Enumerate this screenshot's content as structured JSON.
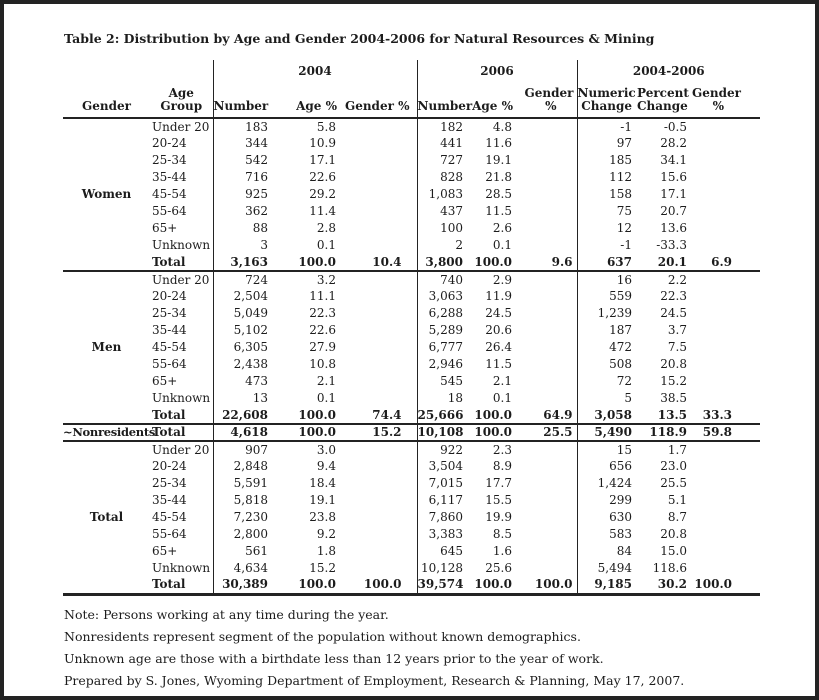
{
  "title": "Table 2: Distribution by Age and Gender 2004-2006 for Natural Resources & Mining",
  "colors": {
    "text": "#1c1c1c",
    "line": "#232323",
    "background": "#ffffff"
  },
  "header": {
    "gender": "Gender",
    "age_group_line1": "Age",
    "age_group_line2": "Group",
    "groups": [
      {
        "year": "2004",
        "cols": [
          [
            "Number"
          ],
          [
            "Age %"
          ],
          [
            "Gender %"
          ]
        ]
      },
      {
        "year": "2006",
        "cols": [
          [
            "Number"
          ],
          [
            "Age %"
          ],
          [
            "Gender",
            "%"
          ]
        ]
      },
      {
        "year": "2004-2006",
        "cols": [
          [
            "Numeric",
            "Change"
          ],
          [
            "Percent",
            "Change"
          ],
          [
            "Gender",
            "%"
          ]
        ]
      }
    ]
  },
  "sections": [
    {
      "gender": "Women",
      "rows": [
        {
          "age": "Under 20",
          "total": false,
          "values": [
            "183",
            "5.8",
            "",
            "182",
            "4.8",
            "",
            "-1",
            "-0.5",
            ""
          ]
        },
        {
          "age": "20-24",
          "total": false,
          "values": [
            "344",
            "10.9",
            "",
            "441",
            "11.6",
            "",
            "97",
            "28.2",
            ""
          ]
        },
        {
          "age": "25-34",
          "total": false,
          "values": [
            "542",
            "17.1",
            "",
            "727",
            "19.1",
            "",
            "185",
            "34.1",
            ""
          ]
        },
        {
          "age": "35-44",
          "total": false,
          "values": [
            "716",
            "22.6",
            "",
            "828",
            "21.8",
            "",
            "112",
            "15.6",
            ""
          ]
        },
        {
          "age": "45-54",
          "total": false,
          "values": [
            "925",
            "29.2",
            "",
            "1,083",
            "28.5",
            "",
            "158",
            "17.1",
            ""
          ]
        },
        {
          "age": "55-64",
          "total": false,
          "values": [
            "362",
            "11.4",
            "",
            "437",
            "11.5",
            "",
            "75",
            "20.7",
            ""
          ]
        },
        {
          "age": "65+",
          "total": false,
          "values": [
            "88",
            "2.8",
            "",
            "100",
            "2.6",
            "",
            "12",
            "13.6",
            ""
          ]
        },
        {
          "age": "Unknown",
          "total": false,
          "values": [
            "3",
            "0.1",
            "",
            "2",
            "0.1",
            "",
            "-1",
            "-33.3",
            ""
          ]
        },
        {
          "age": "Total",
          "total": true,
          "values": [
            "3,163",
            "100.0",
            "10.4",
            "3,800",
            "100.0",
            "9.6",
            "637",
            "20.1",
            "6.9"
          ]
        }
      ]
    },
    {
      "gender": "Men",
      "rows": [
        {
          "age": "Under 20",
          "total": false,
          "values": [
            "724",
            "3.2",
            "",
            "740",
            "2.9",
            "",
            "16",
            "2.2",
            ""
          ]
        },
        {
          "age": "20-24",
          "total": false,
          "values": [
            "2,504",
            "11.1",
            "",
            "3,063",
            "11.9",
            "",
            "559",
            "22.3",
            ""
          ]
        },
        {
          "age": "25-34",
          "total": false,
          "values": [
            "5,049",
            "22.3",
            "",
            "6,288",
            "24.5",
            "",
            "1,239",
            "24.5",
            ""
          ]
        },
        {
          "age": "35-44",
          "total": false,
          "values": [
            "5,102",
            "22.6",
            "",
            "5,289",
            "20.6",
            "",
            "187",
            "3.7",
            ""
          ]
        },
        {
          "age": "45-54",
          "total": false,
          "values": [
            "6,305",
            "27.9",
            "",
            "6,777",
            "26.4",
            "",
            "472",
            "7.5",
            ""
          ]
        },
        {
          "age": "55-64",
          "total": false,
          "values": [
            "2,438",
            "10.8",
            "",
            "2,946",
            "11.5",
            "",
            "508",
            "20.8",
            ""
          ]
        },
        {
          "age": "65+",
          "total": false,
          "values": [
            "473",
            "2.1",
            "",
            "545",
            "2.1",
            "",
            "72",
            "15.2",
            ""
          ]
        },
        {
          "age": "Unknown",
          "total": false,
          "values": [
            "13",
            "0.1",
            "",
            "18",
            "0.1",
            "",
            "5",
            "38.5",
            ""
          ]
        },
        {
          "age": "Total",
          "total": true,
          "values": [
            "22,608",
            "100.0",
            "74.4",
            "25,666",
            "100.0",
            "64.9",
            "3,058",
            "13.5",
            "33.3"
          ]
        }
      ]
    },
    {
      "gender": "~Nonresidents",
      "rows": [
        {
          "age": "Total",
          "total": true,
          "values": [
            "4,618",
            "100.0",
            "15.2",
            "10,108",
            "100.0",
            "25.5",
            "5,490",
            "118.9",
            "59.8"
          ]
        }
      ]
    },
    {
      "gender": "Total",
      "rows": [
        {
          "age": "Under 20",
          "total": false,
          "values": [
            "907",
            "3.0",
            "",
            "922",
            "2.3",
            "",
            "15",
            "1.7",
            ""
          ]
        },
        {
          "age": "20-24",
          "total": false,
          "values": [
            "2,848",
            "9.4",
            "",
            "3,504",
            "8.9",
            "",
            "656",
            "23.0",
            ""
          ]
        },
        {
          "age": "25-34",
          "total": false,
          "values": [
            "5,591",
            "18.4",
            "",
            "7,015",
            "17.7",
            "",
            "1,424",
            "25.5",
            ""
          ]
        },
        {
          "age": "35-44",
          "total": false,
          "values": [
            "5,818",
            "19.1",
            "",
            "6,117",
            "15.5",
            "",
            "299",
            "5.1",
            ""
          ]
        },
        {
          "age": "45-54",
          "total": false,
          "values": [
            "7,230",
            "23.8",
            "",
            "7,860",
            "19.9",
            "",
            "630",
            "8.7",
            ""
          ]
        },
        {
          "age": "55-64",
          "total": false,
          "values": [
            "2,800",
            "9.2",
            "",
            "3,383",
            "8.5",
            "",
            "583",
            "20.8",
            ""
          ]
        },
        {
          "age": "65+",
          "total": false,
          "values": [
            "561",
            "1.8",
            "",
            "645",
            "1.6",
            "",
            "84",
            "15.0",
            ""
          ]
        },
        {
          "age": "Unknown",
          "total": false,
          "values": [
            "4,634",
            "15.2",
            "",
            "10,128",
            "25.6",
            "",
            "5,494",
            "118.6",
            ""
          ]
        },
        {
          "age": "Total",
          "total": true,
          "values": [
            "30,389",
            "100.0",
            "100.0",
            "39,574",
            "100.0",
            "100.0",
            "9,185",
            "30.2",
            "100.0"
          ]
        }
      ]
    }
  ],
  "column_keys": [
    "number-2004",
    "age-pct-2004",
    "gender-pct-2004",
    "number-2006",
    "age-pct-2006",
    "gender-pct-2006",
    "numeric-change",
    "percent-change",
    "gender-pct-change"
  ],
  "notes": [
    "Note: Persons working at any time during the year.",
    "Nonresidents represent segment of the population without known demographics.",
    "Unknown age are those with a birthdate less than 12 years prior to the year of work.",
    "Prepared by S. Jones, Wyoming Department of Employment, Research & Planning, May 17, 2007."
  ]
}
